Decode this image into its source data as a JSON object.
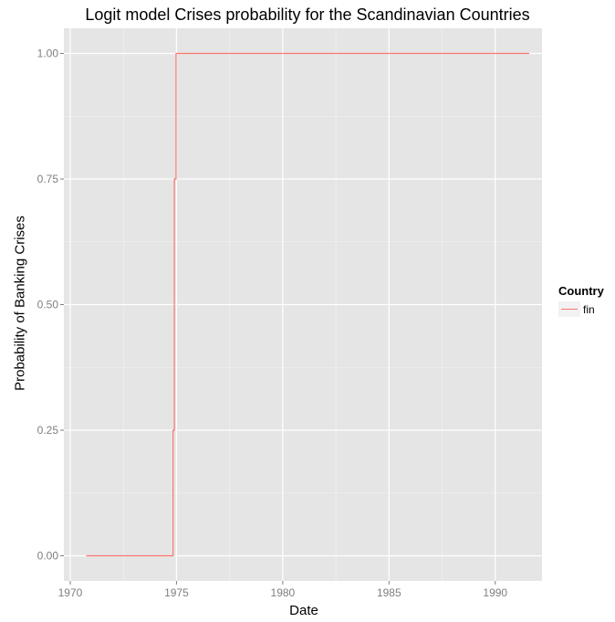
{
  "chart_data": {
    "type": "line",
    "title": "Logit model Crises probability  for the Scandinavian Countries",
    "xlabel": "Date",
    "ylabel": "Probability of Banking Crises",
    "x_ticks": [
      1970,
      1975,
      1980,
      1985,
      1990
    ],
    "y_ticks": [
      "0.00",
      "0.25",
      "0.50",
      "0.75",
      "1.00"
    ],
    "xlim": [
      1969.7,
      1992.2
    ],
    "ylim": [
      -0.05,
      1.05
    ],
    "grid": true,
    "legend_title": "Country",
    "legend_position": "right",
    "series": [
      {
        "name": "fin",
        "color": "#F8766D",
        "points": [
          [
            1970.75,
            0.0
          ],
          [
            1974.84,
            0.0
          ],
          [
            1974.84,
            0.25
          ],
          [
            1974.9,
            0.25
          ],
          [
            1974.9,
            0.75
          ],
          [
            1974.98,
            0.75
          ],
          [
            1974.98,
            1.0
          ],
          [
            1991.6,
            1.0
          ]
        ]
      }
    ]
  }
}
